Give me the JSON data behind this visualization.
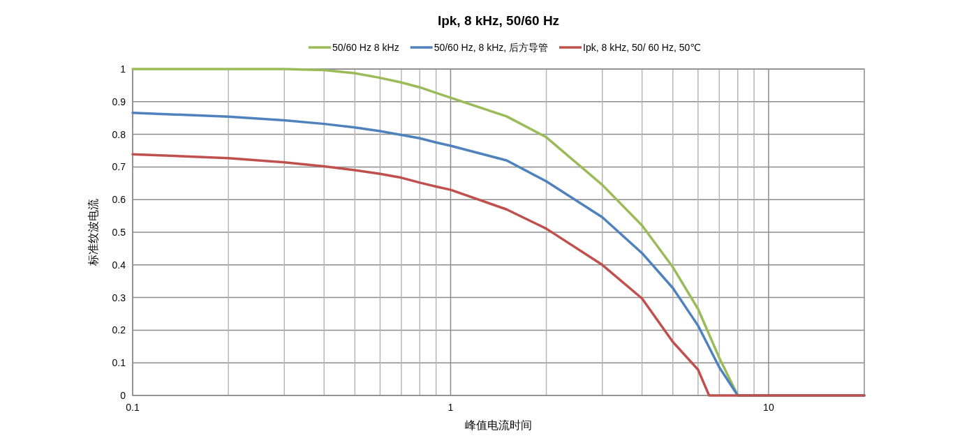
{
  "chart_data": {
    "type": "line",
    "title": "Ipk, 8 kHz, 50/60 Hz",
    "xlabel": "峰值电流时间",
    "ylabel": "标准纹波电流",
    "log": "x",
    "grid": true,
    "legend": "top",
    "marker": "none",
    "line_style": "solid",
    "xlim": [
      0.1,
      20
    ],
    "ylim": [
      0,
      1
    ],
    "xticks": [
      {
        "value": 0.1,
        "label": "0.1"
      },
      {
        "value": 0.2,
        "label": null
      },
      {
        "value": 0.3,
        "label": null
      },
      {
        "value": 0.4,
        "label": null
      },
      {
        "value": 0.5,
        "label": null
      },
      {
        "value": 0.6,
        "label": null
      },
      {
        "value": 0.7,
        "label": null
      },
      {
        "value": 0.8,
        "label": null
      },
      {
        "value": 0.9,
        "label": null
      },
      1,
      {
        "value": 2,
        "label": null
      },
      {
        "value": 3,
        "label": null
      },
      {
        "value": 4,
        "label": null
      },
      {
        "value": 5,
        "label": null
      },
      {
        "value": 6,
        "label": null
      },
      {
        "value": 7,
        "label": null
      },
      {
        "value": 8,
        "label": null
      },
      {
        "value": 9,
        "label": null
      },
      10
    ],
    "yticks": [
      0,
      0.1,
      0.2,
      0.3,
      0.4,
      0.5,
      0.6,
      0.7,
      0.8,
      0.9,
      1
    ],
    "series": [
      {
        "name": "50/60 Hz 8 kHz",
        "color": "#9bbb59",
        "x": [
          0.1,
          0.2,
          0.3,
          0.4,
          0.5,
          0.6,
          0.7,
          0.8,
          0.9,
          1,
          1.5,
          2,
          3,
          4,
          5,
          6,
          7,
          8,
          20
        ],
        "values": [
          1,
          1,
          1,
          0.997,
          0.987,
          0.973,
          0.959,
          0.944,
          0.927,
          0.912,
          0.855,
          0.791,
          0.645,
          0.521,
          0.393,
          0.265,
          0.115,
          0,
          0
        ]
      },
      {
        "name": "50/60 Hz, 8 kHz, 后方导管",
        "color": "#4f81bd",
        "x": [
          0.1,
          0.2,
          0.3,
          0.4,
          0.5,
          0.6,
          0.7,
          0.8,
          0.9,
          1,
          1.5,
          2,
          3,
          4,
          5,
          6,
          7,
          8,
          20
        ],
        "values": [
          0.866,
          0.854,
          0.843,
          0.832,
          0.821,
          0.81,
          0.798,
          0.788,
          0.775,
          0.765,
          0.72,
          0.656,
          0.546,
          0.436,
          0.329,
          0.214,
          0.086,
          0,
          0
        ]
      },
      {
        "name": "Ipk, 8 kHz, 50/ 60 Hz, 50℃",
        "color": "#c0504d",
        "x": [
          0.1,
          0.2,
          0.3,
          0.4,
          0.5,
          0.6,
          0.7,
          0.8,
          0.9,
          1,
          1.5,
          2,
          3,
          4,
          5,
          6,
          6.5,
          20
        ],
        "values": [
          0.739,
          0.727,
          0.714,
          0.702,
          0.69,
          0.679,
          0.667,
          0.652,
          0.64,
          0.63,
          0.57,
          0.511,
          0.4,
          0.297,
          0.164,
          0.079,
          0,
          0
        ]
      }
    ]
  }
}
